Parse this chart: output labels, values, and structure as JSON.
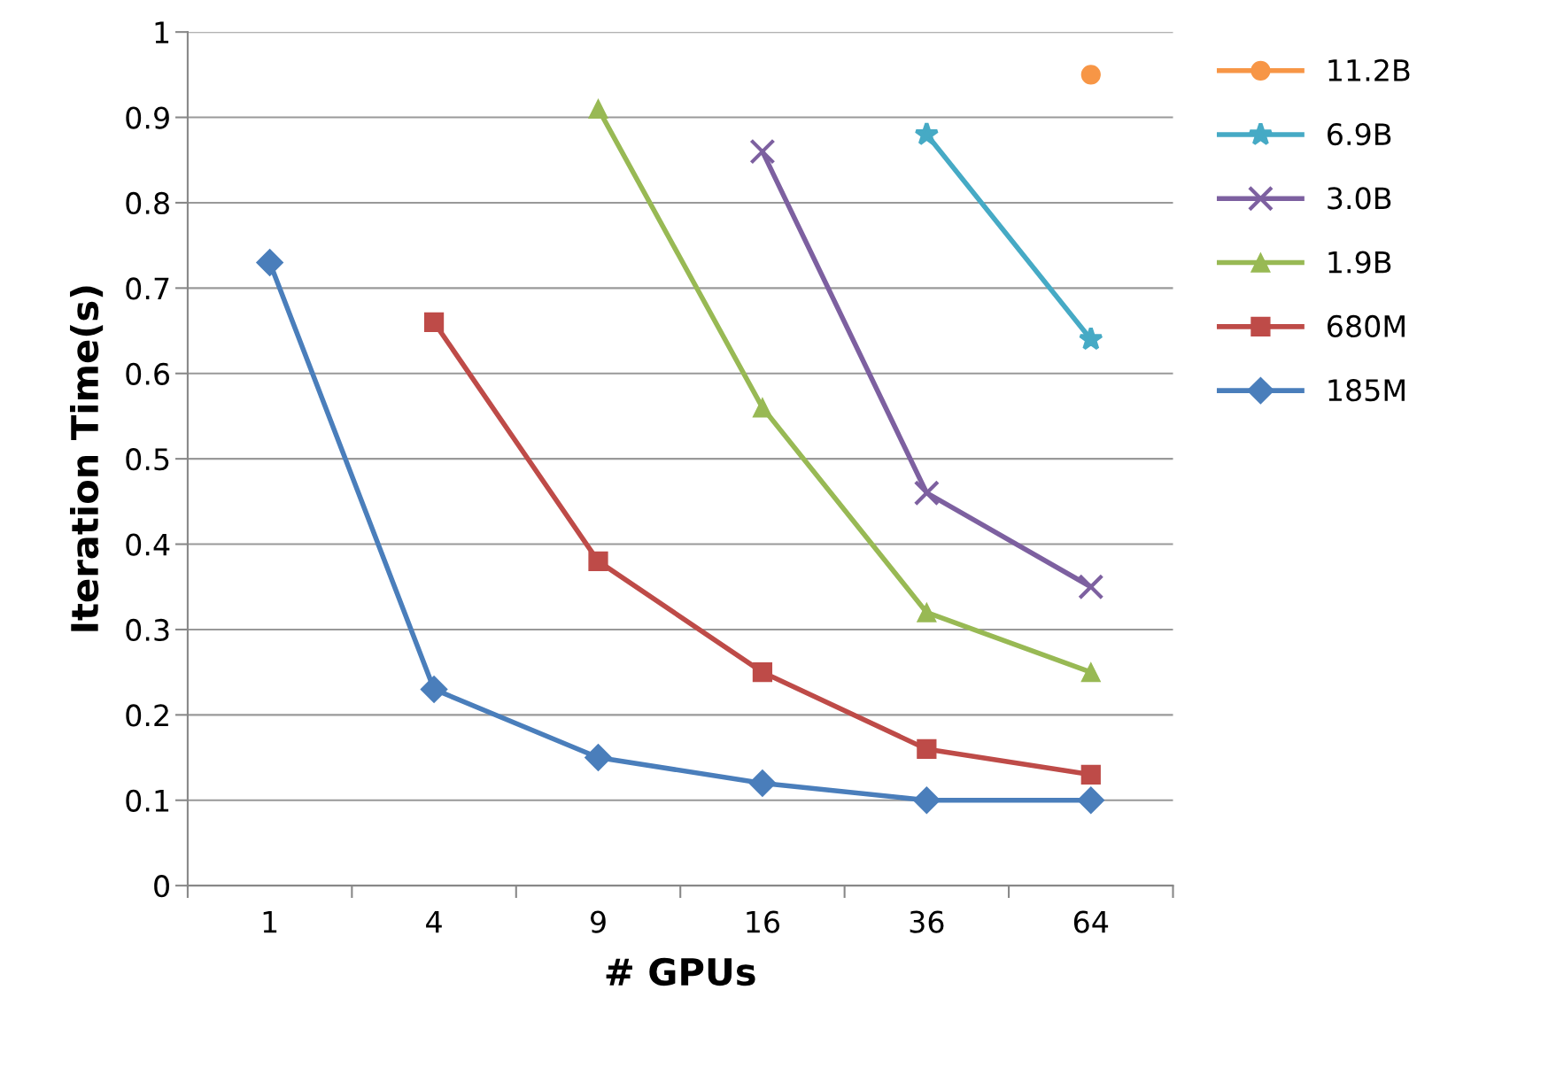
{
  "chart_data": {
    "type": "line",
    "xlabel": "# GPUs",
    "ylabel": "Iteration Time(s)",
    "categories": [
      "1",
      "4",
      "9",
      "16",
      "36",
      "64"
    ],
    "series": [
      {
        "name": "11.2B",
        "color": "#f79646",
        "marker": "circle",
        "values": [
          null,
          null,
          null,
          null,
          null,
          0.95
        ]
      },
      {
        "name": "6.9B",
        "color": "#46aac5",
        "marker": "star",
        "values": [
          null,
          null,
          null,
          null,
          0.88,
          0.64
        ]
      },
      {
        "name": "3.0B",
        "color": "#7d60a0",
        "marker": "cross",
        "values": [
          null,
          null,
          null,
          0.86,
          0.46,
          0.35
        ]
      },
      {
        "name": "1.9B",
        "color": "#98b954",
        "marker": "triangle",
        "values": [
          null,
          null,
          0.91,
          0.56,
          0.32,
          0.25
        ]
      },
      {
        "name": "680M",
        "color": "#be4b48",
        "marker": "square",
        "values": [
          null,
          0.66,
          0.38,
          0.25,
          0.16,
          0.13
        ]
      },
      {
        "name": "185M",
        "color": "#4a7ebb",
        "marker": "diamond",
        "values": [
          0.73,
          0.23,
          0.15,
          0.12,
          0.1,
          0.1
        ]
      }
    ],
    "ylim": [
      0,
      1
    ],
    "yticks": [
      0,
      0.1,
      0.2,
      0.3,
      0.4,
      0.5,
      0.6,
      0.7,
      0.8,
      0.9,
      1
    ],
    "grid": "y",
    "legend": "right",
    "line_style": "solid"
  }
}
